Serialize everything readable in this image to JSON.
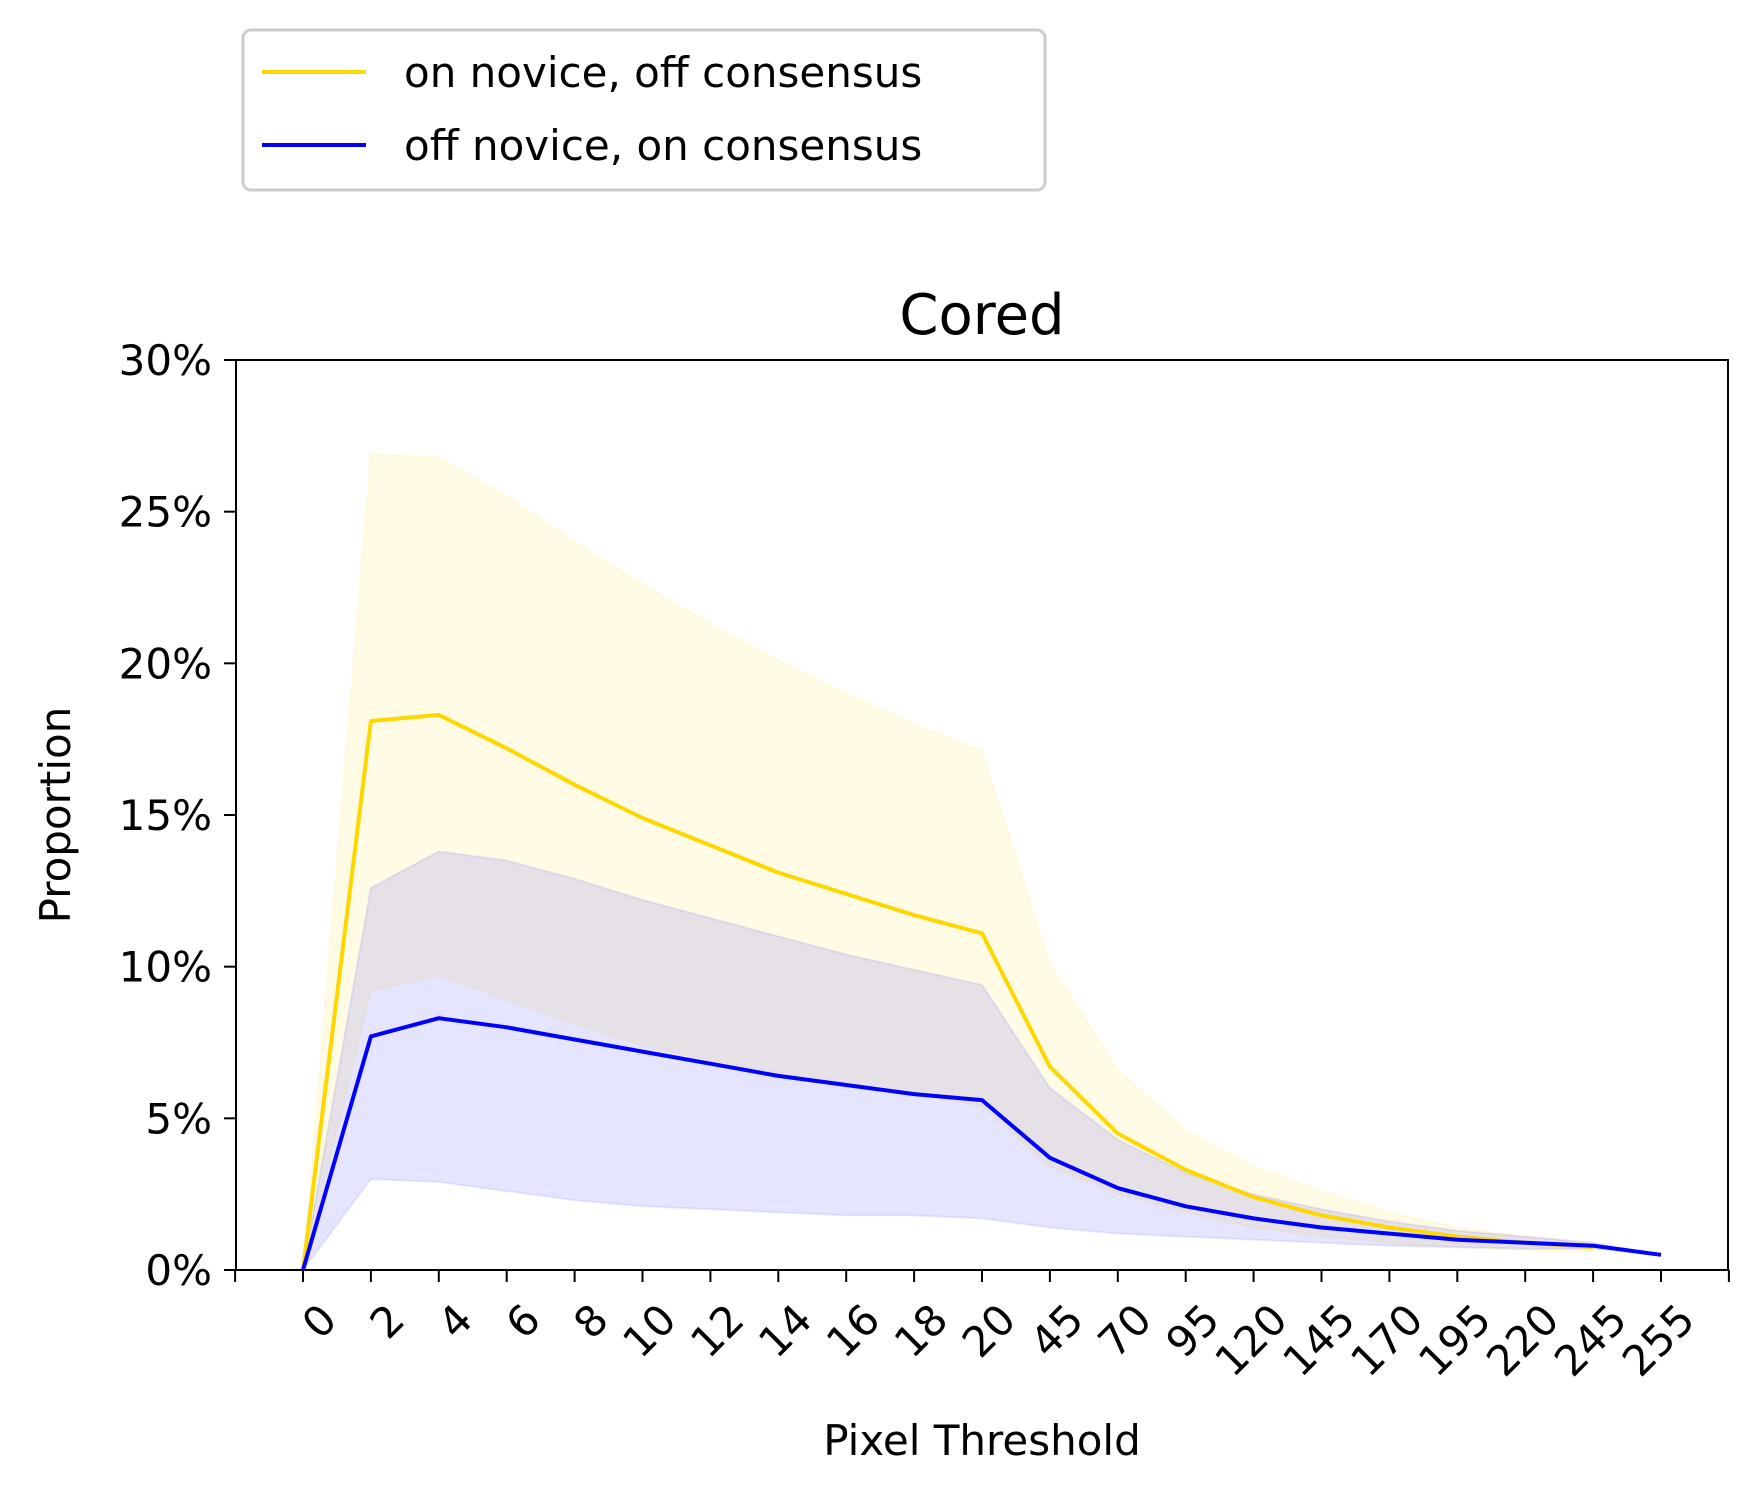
{
  "chart_data": {
    "type": "line",
    "title": "Cored",
    "xlabel": "Pixel Threshold",
    "ylabel": "Proportion",
    "categories": [
      "0",
      "2",
      "4",
      "6",
      "8",
      "10",
      "12",
      "14",
      "16",
      "18",
      "20",
      "45",
      "70",
      "95",
      "120",
      "145",
      "170",
      "195",
      "220",
      "245",
      "255"
    ],
    "ylim": [
      0,
      0.3
    ],
    "yticks": [
      0,
      0.05,
      0.1,
      0.15,
      0.2,
      0.25,
      0.3
    ],
    "ytick_labels": [
      "0%",
      "5%",
      "10%",
      "15%",
      "20%",
      "25%",
      "30%"
    ],
    "grid": false,
    "legend_position": "top-left, outside above plot",
    "series": [
      {
        "name": "on novice, off consensus",
        "color": "#FFD700",
        "values": [
          0.0,
          0.181,
          0.183,
          0.172,
          0.16,
          0.149,
          0.14,
          0.131,
          0.124,
          0.117,
          0.111,
          0.067,
          0.045,
          0.033,
          0.024,
          0.018,
          0.014,
          0.011,
          0.009,
          0.0075,
          null
        ],
        "lower": [
          0.0,
          0.092,
          0.097,
          0.089,
          0.081,
          0.074,
          0.069,
          0.065,
          0.061,
          0.058,
          0.054,
          0.034,
          0.025,
          0.019,
          0.014,
          0.011,
          0.009,
          0.0075,
          0.0065,
          0.006,
          null
        ],
        "upper": [
          0.0,
          0.269,
          0.268,
          0.255,
          0.24,
          0.226,
          0.213,
          0.201,
          0.19,
          0.18,
          0.171,
          0.101,
          0.066,
          0.046,
          0.034,
          0.026,
          0.019,
          0.014,
          0.011,
          0.009,
          null
        ]
      },
      {
        "name": "off novice, on consensus",
        "color": "#0000FF",
        "values": [
          0.0,
          0.077,
          0.083,
          0.08,
          0.076,
          0.072,
          0.068,
          0.064,
          0.061,
          0.058,
          0.056,
          0.037,
          0.027,
          0.021,
          0.017,
          0.014,
          0.012,
          0.01,
          0.009,
          0.008,
          0.005
        ],
        "lower": [
          0.0,
          0.03,
          0.029,
          0.026,
          0.023,
          0.021,
          0.02,
          0.019,
          0.018,
          0.018,
          0.017,
          0.014,
          0.012,
          0.011,
          0.01,
          0.009,
          0.008,
          0.0075,
          0.007,
          0.007,
          0.005
        ],
        "upper": [
          0.0,
          0.126,
          0.138,
          0.135,
          0.129,
          0.122,
          0.116,
          0.11,
          0.104,
          0.099,
          0.094,
          0.06,
          0.043,
          0.032,
          0.025,
          0.02,
          0.016,
          0.013,
          0.011,
          0.009,
          0.005
        ]
      }
    ]
  }
}
